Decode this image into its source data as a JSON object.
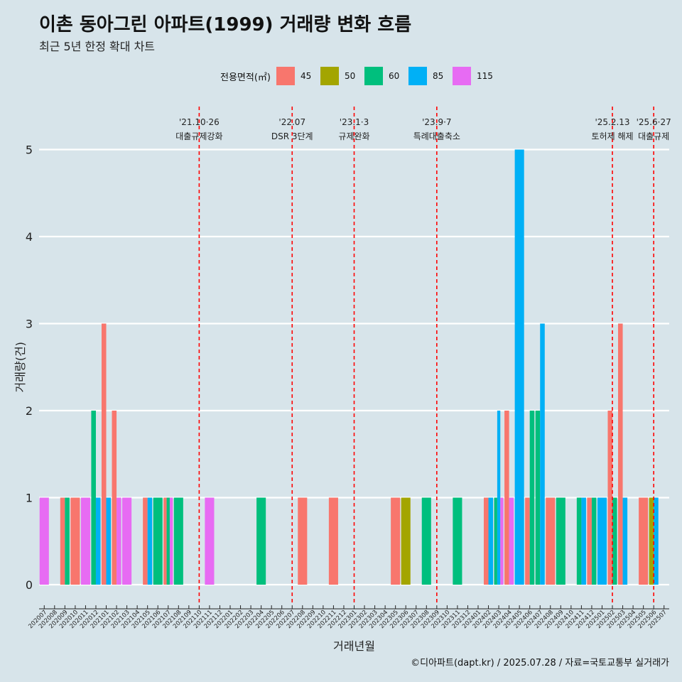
{
  "title": "이촌 동아그린 아파트(1999) 거래량 변화 흐름",
  "subtitle": "최근 5년 한정 확대 차트",
  "caption": "©디아파트(dapt.kr) / 2025.07.28 / 자료=국토교통부 실거래가",
  "legend": {
    "title": "전용면적(㎡)",
    "items": [
      {
        "label": "45",
        "color": "#f8766d"
      },
      {
        "label": "50",
        "color": "#a3a500"
      },
      {
        "label": "60",
        "color": "#00bf7d"
      },
      {
        "label": "85",
        "color": "#00b0f6"
      },
      {
        "label": "115",
        "color": "#e76bf3"
      }
    ]
  },
  "chart_data": {
    "type": "bar",
    "xlabel": "거래년월",
    "ylabel": "거래량(건)",
    "ylim": [
      0,
      5
    ],
    "yticks": [
      0,
      1,
      2,
      3,
      4,
      5
    ],
    "categories": [
      "202007",
      "202008",
      "202009",
      "202010",
      "202011",
      "202012",
      "202101",
      "202102",
      "202103",
      "202104",
      "202105",
      "202106",
      "202107",
      "202108",
      "202109",
      "202110",
      "202111",
      "202112",
      "202201",
      "202202",
      "202203",
      "202204",
      "202205",
      "202206",
      "202207",
      "202208",
      "202209",
      "202210",
      "202211",
      "202212",
      "202301",
      "202302",
      "202303",
      "202304",
      "202305",
      "202306",
      "202307",
      "202308",
      "202309",
      "202310",
      "202311",
      "202312",
      "202401",
      "202402",
      "202403",
      "202404",
      "202405",
      "202406",
      "202407",
      "202408",
      "202409",
      "202410",
      "202411",
      "202412",
      "202501",
      "202502",
      "202503",
      "202504",
      "202505",
      "202506",
      "202507"
    ],
    "series": [
      {
        "name": "45",
        "values": [
          0,
          0,
          1,
          1,
          0,
          0,
          3,
          2,
          0,
          0,
          1,
          0,
          1,
          0,
          0,
          0,
          0,
          0,
          0,
          0,
          0,
          0,
          0,
          0,
          0,
          1,
          0,
          0,
          1,
          0,
          0,
          0,
          0,
          0,
          1,
          0,
          0,
          0,
          0,
          0,
          0,
          0,
          0,
          1,
          0,
          2,
          0,
          1,
          0,
          1,
          0,
          0,
          0,
          1,
          0,
          2,
          3,
          0,
          1,
          0,
          0
        ]
      },
      {
        "name": "50",
        "values": [
          0,
          0,
          0,
          0,
          0,
          0,
          0,
          0,
          0,
          0,
          0,
          0,
          0,
          0,
          0,
          0,
          0,
          0,
          0,
          0,
          0,
          0,
          0,
          0,
          0,
          0,
          0,
          0,
          0,
          0,
          0,
          0,
          0,
          0,
          0,
          1,
          0,
          0,
          0,
          0,
          0,
          0,
          0,
          0,
          0,
          0,
          0,
          0,
          0,
          0,
          0,
          0,
          0,
          0,
          0,
          0,
          0,
          0,
          0,
          1,
          0
        ]
      },
      {
        "name": "60",
        "values": [
          0,
          0,
          1,
          0,
          0,
          2,
          0,
          0,
          0,
          0,
          0,
          1,
          1,
          1,
          0,
          0,
          0,
          0,
          0,
          0,
          0,
          1,
          0,
          0,
          0,
          0,
          0,
          0,
          0,
          0,
          0,
          0,
          0,
          0,
          0,
          0,
          0,
          1,
          0,
          0,
          1,
          0,
          0,
          0,
          1,
          0,
          0,
          2,
          2,
          0,
          1,
          0,
          1,
          1,
          0,
          1,
          0,
          0,
          0,
          0,
          0
        ]
      },
      {
        "name": "85",
        "values": [
          0,
          0,
          0,
          0,
          0,
          1,
          1,
          0,
          0,
          0,
          1,
          0,
          0,
          0,
          0,
          0,
          0,
          0,
          0,
          0,
          0,
          0,
          0,
          0,
          0,
          0,
          0,
          0,
          0,
          0,
          0,
          0,
          0,
          0,
          0,
          0,
          0,
          0,
          0,
          0,
          0,
          0,
          0,
          1,
          2,
          0,
          5,
          0,
          3,
          0,
          0,
          0,
          1,
          0,
          1,
          0,
          1,
          0,
          0,
          1,
          0
        ]
      },
      {
        "name": "115",
        "values": [
          1,
          0,
          0,
          0,
          1,
          0,
          0,
          1,
          1,
          0,
          0,
          0,
          1,
          0,
          0,
          0,
          1,
          0,
          0,
          0,
          0,
          0,
          0,
          0,
          0,
          0,
          0,
          0,
          0,
          0,
          0,
          0,
          0,
          0,
          0,
          0,
          0,
          0,
          0,
          0,
          0,
          0,
          0,
          0,
          1,
          1,
          0,
          0,
          0,
          0,
          0,
          0,
          0,
          0,
          0,
          0,
          0,
          0,
          0,
          0,
          0
        ]
      }
    ],
    "annotations": [
      {
        "month": "202110",
        "label1": "'21.10·26",
        "label2": "대출규제강화"
      },
      {
        "month": "202207",
        "label1": "'22.07",
        "label2": "DSR 3단계"
      },
      {
        "month": "202301",
        "label1": "'23.1·3",
        "label2": "규제완화"
      },
      {
        "month": "202309",
        "label1": "'23.9·7",
        "label2": "특례대출축소"
      },
      {
        "month": "202502",
        "label1": "'25.2.13",
        "label2": "토허제 해제"
      },
      {
        "month": "202506",
        "label1": "'25.6·27",
        "label2": "대출규제"
      }
    ]
  }
}
